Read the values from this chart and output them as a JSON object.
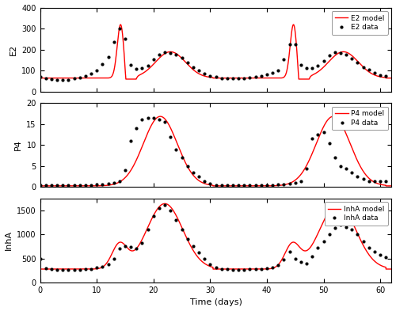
{
  "fig_width": 5.0,
  "fig_height": 3.93,
  "dpi": 100,
  "xlim": [
    0,
    62
  ],
  "xticks": [
    0,
    10,
    20,
    30,
    40,
    50,
    60
  ],
  "xlabel": "Time (days)",
  "panel1_ylabel": "E2",
  "panel1_ylim": [
    0,
    400
  ],
  "panel1_yticks": [
    0,
    100,
    200,
    300,
    400
  ],
  "panel2_ylabel": "P4",
  "panel2_ylim": [
    0,
    20
  ],
  "panel2_yticks": [
    0,
    5,
    10,
    15,
    20
  ],
  "panel3_ylabel": "InhA",
  "panel3_ylim": [
    0,
    1750
  ],
  "panel3_yticks": [
    0,
    500,
    1000,
    1500
  ],
  "line_color": "#FF0000",
  "data_color": "#000000",
  "background_color": "#ffffff",
  "legend_E2_line": "E2 model",
  "legend_E2_dot": "E2 data",
  "legend_P4_line": "P4 model",
  "legend_P4_dot": "P4 data",
  "legend_InhA_line": "InhA model",
  "legend_InhA_dot": "InhA data",
  "E2_data_x": [
    0,
    1,
    2,
    3,
    4,
    5,
    6,
    7,
    8,
    9,
    10,
    11,
    12,
    13,
    14,
    15,
    16,
    17,
    18,
    19,
    20,
    21,
    22,
    23,
    24,
    25,
    26,
    27,
    28,
    29,
    30,
    31,
    32,
    33,
    34,
    35,
    36,
    37,
    38,
    39,
    40,
    41,
    42,
    43,
    44,
    45,
    46,
    47,
    48,
    49,
    50,
    51,
    52,
    53,
    54,
    55,
    56,
    57,
    58,
    59,
    60,
    61
  ],
  "E2_data_y": [
    70,
    65,
    60,
    58,
    55,
    58,
    62,
    68,
    75,
    85,
    100,
    130,
    165,
    235,
    300,
    250,
    128,
    110,
    112,
    122,
    155,
    178,
    188,
    185,
    175,
    160,
    138,
    118,
    100,
    85,
    75,
    70,
    65,
    62,
    62,
    62,
    65,
    68,
    72,
    75,
    82,
    90,
    100,
    155,
    225,
    225,
    128,
    112,
    112,
    122,
    148,
    172,
    188,
    185,
    175,
    158,
    138,
    118,
    105,
    90,
    80,
    75
  ],
  "P4_data_x": [
    0,
    1,
    2,
    3,
    4,
    5,
    6,
    7,
    8,
    9,
    10,
    11,
    12,
    13,
    14,
    15,
    16,
    17,
    18,
    19,
    20,
    21,
    22,
    23,
    24,
    25,
    26,
    27,
    28,
    29,
    30,
    31,
    32,
    33,
    34,
    35,
    36,
    37,
    38,
    39,
    40,
    41,
    42,
    43,
    44,
    45,
    46,
    47,
    48,
    49,
    50,
    51,
    52,
    53,
    54,
    55,
    56,
    57,
    58,
    59,
    60,
    61
  ],
  "P4_data_y": [
    0.5,
    0.5,
    0.4,
    0.4,
    0.4,
    0.4,
    0.4,
    0.4,
    0.5,
    0.5,
    0.6,
    0.7,
    0.8,
    1.0,
    1.5,
    4.0,
    11.0,
    14.0,
    16.0,
    16.5,
    16.5,
    16.0,
    15.5,
    12.0,
    9.0,
    7.0,
    5.0,
    3.5,
    2.5,
    1.5,
    0.8,
    0.5,
    0.4,
    0.4,
    0.4,
    0.4,
    0.4,
    0.4,
    0.5,
    0.5,
    0.5,
    0.5,
    0.6,
    0.7,
    0.8,
    1.0,
    1.5,
    4.5,
    11.5,
    12.5,
    13.0,
    10.5,
    7.0,
    5.0,
    4.5,
    3.5,
    2.5,
    2.0,
    1.5,
    1.5,
    1.5,
    1.5
  ],
  "InhA_data_x": [
    0,
    1,
    2,
    3,
    4,
    5,
    6,
    7,
    8,
    9,
    10,
    11,
    12,
    13,
    14,
    15,
    16,
    17,
    18,
    19,
    20,
    21,
    22,
    23,
    24,
    25,
    26,
    27,
    28,
    29,
    30,
    31,
    32,
    33,
    34,
    35,
    36,
    37,
    38,
    39,
    40,
    41,
    42,
    43,
    44,
    45,
    46,
    47,
    48,
    49,
    50,
    51,
    52,
    53,
    54,
    55,
    56,
    57,
    58,
    59,
    60,
    61
  ],
  "InhA_data_y": [
    500,
    290,
    280,
    270,
    265,
    265,
    265,
    270,
    275,
    285,
    305,
    330,
    380,
    500,
    700,
    760,
    740,
    700,
    820,
    1100,
    1380,
    1550,
    1620,
    1500,
    1300,
    1100,
    900,
    750,
    620,
    500,
    380,
    310,
    285,
    275,
    270,
    270,
    270,
    275,
    280,
    285,
    300,
    320,
    360,
    470,
    640,
    500,
    420,
    400,
    550,
    720,
    850,
    1000,
    1130,
    1200,
    1150,
    1100,
    1000,
    850,
    720,
    650,
    580,
    530
  ],
  "E2_model_t": [],
  "E2_model_y": [],
  "P4_model_t": [],
  "P4_model_y": [],
  "InhA_model_t": [],
  "InhA_model_y": []
}
